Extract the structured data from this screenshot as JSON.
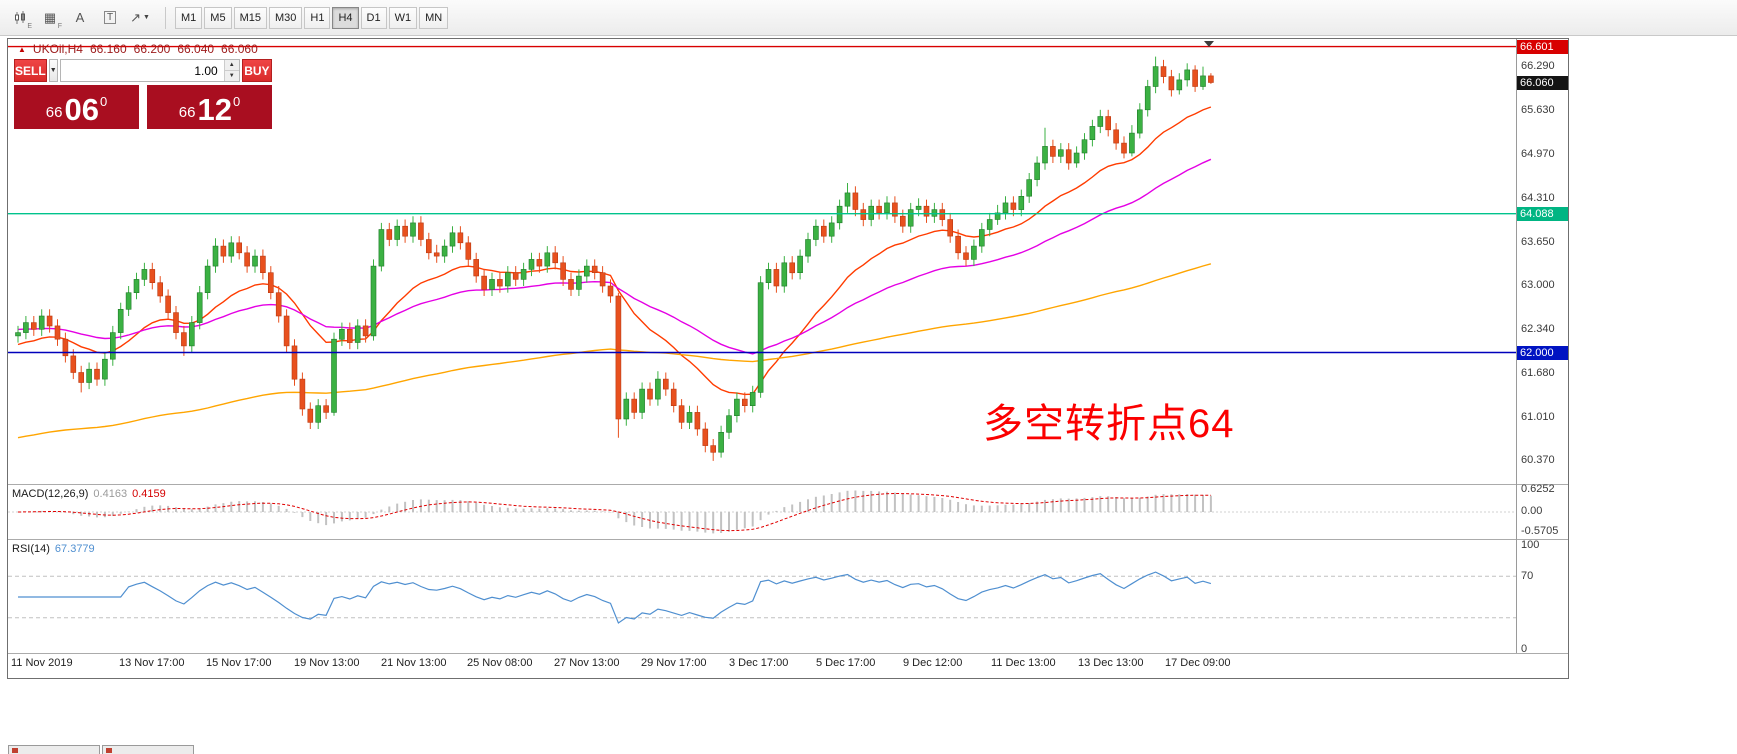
{
  "toolbar": {
    "icons": [
      {
        "name": "chart-candles-icon",
        "sub": "E"
      },
      {
        "name": "grid-icon",
        "glyph": "▦",
        "sub": "F"
      },
      {
        "name": "text-label-icon",
        "glyph": "A"
      },
      {
        "name": "text-box-icon",
        "glyph": "T"
      },
      {
        "name": "draw-tools-icon",
        "glyph": "↗",
        "dropdown": "▼"
      }
    ],
    "timeframes": [
      {
        "label": "M1"
      },
      {
        "label": "M5"
      },
      {
        "label": "M15"
      },
      {
        "label": "M30"
      },
      {
        "label": "H1"
      },
      {
        "label": "H4",
        "active": true
      },
      {
        "label": "D1"
      },
      {
        "label": "W1"
      },
      {
        "label": "MN"
      }
    ]
  },
  "quote_header": {
    "arrow": "▲",
    "symbol": "UKOil,H4",
    "open": "66.160",
    "high": "66.200",
    "low": "66.040",
    "close": "66.060"
  },
  "trade_panel": {
    "sell_label": "SELL",
    "buy_label": "BUY",
    "volume": "1.00",
    "dropdown_glyph": "▼",
    "spin_up": "▲",
    "spin_down": "▼",
    "bid": {
      "prefix": "66",
      "big": "06",
      "sup": "0"
    },
    "ask": {
      "prefix": "66",
      "big": "12",
      "sup": "0"
    }
  },
  "annotation": {
    "text": "多空转折点64",
    "color": "#fb0000"
  },
  "price_scale": {
    "gridlines": [
      "66.290",
      "65.630",
      "64.970",
      "64.310",
      "63.650",
      "63.000",
      "62.340",
      "61.680",
      "61.010",
      "60.370"
    ],
    "badges": [
      {
        "label": "66.601",
        "color": "#d80000"
      },
      {
        "label": "66.060",
        "color": "#141414"
      },
      {
        "label": "64.088",
        "color": "#00b583"
      },
      {
        "label": "62.000",
        "color": "#0013c2"
      }
    ]
  },
  "macd_panel": {
    "name": "MACD(12,26,9)",
    "value_main": "0.4163",
    "value_signal": "0.4159",
    "scale_labels": [
      "0.6252",
      "0.00",
      "-0.5705"
    ],
    "params": [
      12,
      26,
      9
    ]
  },
  "rsi_panel": {
    "name": "RSI(14)",
    "value": "67.3779",
    "scale_labels": [
      "100",
      "70",
      "0"
    ],
    "levels": [
      70,
      30
    ],
    "period": 14
  },
  "chart_data": {
    "type": "candlestick",
    "symbol": "UKOil",
    "timeframe": "H4",
    "price_range": [
      59.94,
      66.72
    ],
    "up_color": "#3bb143",
    "down_color": "#e8501e",
    "hlines": [
      {
        "price": 66.601,
        "color": "#d80000"
      },
      {
        "price": 64.088,
        "color": "#00c38c"
      },
      {
        "price": 62.0,
        "color": "#0000bb"
      }
    ],
    "ma": [
      {
        "name": "ma-fast",
        "color": "#ff3c00",
        "period": 18,
        "seed": 62.1
      },
      {
        "name": "ma-medium",
        "color": "#e400e4",
        "period": 45,
        "seed": 62.35
      },
      {
        "name": "ma-slow",
        "color": "#ffa500",
        "period": 160,
        "seed": 60.7
      }
    ],
    "time_labels": [
      "11 Nov 2019",
      "13 Nov 17:00",
      "15 Nov 17:00",
      "19 Nov 13:00",
      "21 Nov 13:00",
      "25 Nov 08:00",
      "27 Nov 13:00",
      "29 Nov 17:00",
      "3 Dec 17:00",
      "5 Dec 17:00",
      "9 Dec 12:00",
      "11 Dec 13:00",
      "13 Dec 13:00",
      "17 Dec 09:00"
    ],
    "candles": [
      [
        62.25,
        62.4,
        62.15,
        62.3
      ],
      [
        62.3,
        62.55,
        62.2,
        62.45
      ],
      [
        62.45,
        62.55,
        62.25,
        62.35
      ],
      [
        62.35,
        62.65,
        62.25,
        62.55
      ],
      [
        62.55,
        62.65,
        62.3,
        62.4
      ],
      [
        62.4,
        62.5,
        62.1,
        62.2
      ],
      [
        62.2,
        62.3,
        61.85,
        61.95
      ],
      [
        61.95,
        62.05,
        61.6,
        61.7
      ],
      [
        61.7,
        61.8,
        61.4,
        61.55
      ],
      [
        61.55,
        61.85,
        61.45,
        61.75
      ],
      [
        61.75,
        61.85,
        61.5,
        61.6
      ],
      [
        61.6,
        62.0,
        61.5,
        61.9
      ],
      [
        61.9,
        62.4,
        61.8,
        62.3
      ],
      [
        62.3,
        62.75,
        62.2,
        62.65
      ],
      [
        62.65,
        63.0,
        62.55,
        62.9
      ],
      [
        62.9,
        63.2,
        62.8,
        63.1
      ],
      [
        63.1,
        63.35,
        63.0,
        63.25
      ],
      [
        63.25,
        63.35,
        62.95,
        63.05
      ],
      [
        63.05,
        63.15,
        62.75,
        62.85
      ],
      [
        62.85,
        62.95,
        62.5,
        62.6
      ],
      [
        62.6,
        62.7,
        62.2,
        62.3
      ],
      [
        62.3,
        62.4,
        61.95,
        62.1
      ],
      [
        62.1,
        62.55,
        62.0,
        62.45
      ],
      [
        62.45,
        63.0,
        62.35,
        62.9
      ],
      [
        62.9,
        63.4,
        62.8,
        63.3
      ],
      [
        63.3,
        63.72,
        63.2,
        63.6
      ],
      [
        63.6,
        63.7,
        63.35,
        63.45
      ],
      [
        63.45,
        63.75,
        63.35,
        63.65
      ],
      [
        63.65,
        63.75,
        63.4,
        63.5
      ],
      [
        63.5,
        63.6,
        63.2,
        63.3
      ],
      [
        63.3,
        63.55,
        63.2,
        63.45
      ],
      [
        63.45,
        63.55,
        63.1,
        63.2
      ],
      [
        63.2,
        63.3,
        62.8,
        62.9
      ],
      [
        62.9,
        63.0,
        62.45,
        62.55
      ],
      [
        62.55,
        62.65,
        62.0,
        62.1
      ],
      [
        62.1,
        62.2,
        61.5,
        61.6
      ],
      [
        61.6,
        61.7,
        61.05,
        61.15
      ],
      [
        61.15,
        61.25,
        60.85,
        60.95
      ],
      [
        60.95,
        61.3,
        60.85,
        61.2
      ],
      [
        61.2,
        61.3,
        61.0,
        61.1
      ],
      [
        61.1,
        62.3,
        61.05,
        62.2
      ],
      [
        62.2,
        62.45,
        62.1,
        62.35
      ],
      [
        62.35,
        62.45,
        62.05,
        62.15
      ],
      [
        62.15,
        62.5,
        62.05,
        62.4
      ],
      [
        62.4,
        62.5,
        62.15,
        62.25
      ],
      [
        62.25,
        63.4,
        62.18,
        63.3
      ],
      [
        63.3,
        63.95,
        63.22,
        63.85
      ],
      [
        63.85,
        63.95,
        63.6,
        63.7
      ],
      [
        63.7,
        64.0,
        63.6,
        63.9
      ],
      [
        63.9,
        64.0,
        63.65,
        63.75
      ],
      [
        63.75,
        64.05,
        63.65,
        63.95
      ],
      [
        63.95,
        64.05,
        63.6,
        63.7
      ],
      [
        63.7,
        63.8,
        63.4,
        63.5
      ],
      [
        63.5,
        63.62,
        63.35,
        63.45
      ],
      [
        63.45,
        63.7,
        63.35,
        63.6
      ],
      [
        63.6,
        63.9,
        63.5,
        63.8
      ],
      [
        63.8,
        63.9,
        63.55,
        63.65
      ],
      [
        63.65,
        63.75,
        63.3,
        63.4
      ],
      [
        63.4,
        63.5,
        63.05,
        63.15
      ],
      [
        63.15,
        63.25,
        62.85,
        62.95
      ],
      [
        62.95,
        63.2,
        62.85,
        63.1
      ],
      [
        63.1,
        63.2,
        62.9,
        63.0
      ],
      [
        63.0,
        63.3,
        62.9,
        63.2
      ],
      [
        63.2,
        63.3,
        63.0,
        63.1
      ],
      [
        63.1,
        63.35,
        63.0,
        63.25
      ],
      [
        63.25,
        63.5,
        63.15,
        63.4
      ],
      [
        63.4,
        63.5,
        63.2,
        63.3
      ],
      [
        63.3,
        63.6,
        63.2,
        63.5
      ],
      [
        63.5,
        63.6,
        63.25,
        63.35
      ],
      [
        63.35,
        63.45,
        63.0,
        63.1
      ],
      [
        63.1,
        63.2,
        62.85,
        62.95
      ],
      [
        62.95,
        63.25,
        62.85,
        63.15
      ],
      [
        63.15,
        63.4,
        63.05,
        63.3
      ],
      [
        63.3,
        63.4,
        63.1,
        63.2
      ],
      [
        63.2,
        63.3,
        62.9,
        63.0
      ],
      [
        63.0,
        63.1,
        62.75,
        62.85
      ],
      [
        62.85,
        62.9,
        60.72,
        61.0
      ],
      [
        61.0,
        61.4,
        60.9,
        61.3
      ],
      [
        61.3,
        61.4,
        61.0,
        61.1
      ],
      [
        61.1,
        61.55,
        61.0,
        61.45
      ],
      [
        61.45,
        61.55,
        61.2,
        61.3
      ],
      [
        61.3,
        61.72,
        61.2,
        61.6
      ],
      [
        61.6,
        61.7,
        61.35,
        61.45
      ],
      [
        61.45,
        61.55,
        61.1,
        61.2
      ],
      [
        61.2,
        61.3,
        60.85,
        60.95
      ],
      [
        60.95,
        61.2,
        60.85,
        61.1
      ],
      [
        61.1,
        61.2,
        60.75,
        60.85
      ],
      [
        60.85,
        60.95,
        60.5,
        60.6
      ],
      [
        60.6,
        60.7,
        60.37,
        60.5
      ],
      [
        60.5,
        60.9,
        60.42,
        60.8
      ],
      [
        60.8,
        61.15,
        60.7,
        61.05
      ],
      [
        61.05,
        61.4,
        60.95,
        61.3
      ],
      [
        61.3,
        61.4,
        61.1,
        61.2
      ],
      [
        61.2,
        61.5,
        61.1,
        61.4
      ],
      [
        61.4,
        63.15,
        61.32,
        63.05
      ],
      [
        63.05,
        63.35,
        62.95,
        63.25
      ],
      [
        63.25,
        63.35,
        62.9,
        63.0
      ],
      [
        63.0,
        63.45,
        62.9,
        63.35
      ],
      [
        63.35,
        63.45,
        63.1,
        63.2
      ],
      [
        63.2,
        63.55,
        63.1,
        63.45
      ],
      [
        63.45,
        63.8,
        63.35,
        63.7
      ],
      [
        63.7,
        64.0,
        63.6,
        63.9
      ],
      [
        63.9,
        64.0,
        63.65,
        63.75
      ],
      [
        63.75,
        64.05,
        63.65,
        63.95
      ],
      [
        63.95,
        64.3,
        63.85,
        64.2
      ],
      [
        64.2,
        64.55,
        64.1,
        64.4
      ],
      [
        64.4,
        64.5,
        64.05,
        64.15
      ],
      [
        64.15,
        64.25,
        63.9,
        64.0
      ],
      [
        64.0,
        64.3,
        63.9,
        64.2
      ],
      [
        64.2,
        64.3,
        64.0,
        64.1
      ],
      [
        64.1,
        64.35,
        64.0,
        64.25
      ],
      [
        64.25,
        64.35,
        63.95,
        64.05
      ],
      [
        64.05,
        64.15,
        63.8,
        63.9
      ],
      [
        63.9,
        64.25,
        63.8,
        64.15
      ],
      [
        64.15,
        64.32,
        64.05,
        64.2
      ],
      [
        64.2,
        64.3,
        63.95,
        64.05
      ],
      [
        64.05,
        64.25,
        63.95,
        64.15
      ],
      [
        64.15,
        64.25,
        63.9,
        64.0
      ],
      [
        64.0,
        64.1,
        63.65,
        63.75
      ],
      [
        63.75,
        63.85,
        63.4,
        63.5
      ],
      [
        63.5,
        63.6,
        63.3,
        63.4
      ],
      [
        63.4,
        63.7,
        63.3,
        63.6
      ],
      [
        63.6,
        63.95,
        63.5,
        63.85
      ],
      [
        63.85,
        64.1,
        63.75,
        64.0
      ],
      [
        64.0,
        64.22,
        63.92,
        64.1
      ],
      [
        64.1,
        64.35,
        64.0,
        64.25
      ],
      [
        64.25,
        64.35,
        64.05,
        64.15
      ],
      [
        64.15,
        64.45,
        64.05,
        64.35
      ],
      [
        64.35,
        64.7,
        64.25,
        64.6
      ],
      [
        64.6,
        64.95,
        64.5,
        64.85
      ],
      [
        64.85,
        65.38,
        64.75,
        65.1
      ],
      [
        65.1,
        65.2,
        64.85,
        64.95
      ],
      [
        64.95,
        65.15,
        64.85,
        65.05
      ],
      [
        65.05,
        65.15,
        64.75,
        64.85
      ],
      [
        64.85,
        65.1,
        64.78,
        65.0
      ],
      [
        65.0,
        65.3,
        64.9,
        65.2
      ],
      [
        65.2,
        65.5,
        65.1,
        65.4
      ],
      [
        65.4,
        65.65,
        65.3,
        65.55
      ],
      [
        65.55,
        65.65,
        65.25,
        65.35
      ],
      [
        65.35,
        65.45,
        65.05,
        65.15
      ],
      [
        65.15,
        65.25,
        64.92,
        65.0
      ],
      [
        65.0,
        65.42,
        64.95,
        65.3
      ],
      [
        65.3,
        65.75,
        65.22,
        65.65
      ],
      [
        65.65,
        66.1,
        65.55,
        66.0
      ],
      [
        66.0,
        66.45,
        65.9,
        66.3
      ],
      [
        66.3,
        66.4,
        66.05,
        66.15
      ],
      [
        66.15,
        66.25,
        65.85,
        65.95
      ],
      [
        65.95,
        66.2,
        65.88,
        66.1
      ],
      [
        66.1,
        66.35,
        66.0,
        66.25
      ],
      [
        66.25,
        66.32,
        65.92,
        66.0
      ],
      [
        66.0,
        66.3,
        65.95,
        66.16
      ],
      [
        66.16,
        66.2,
        66.04,
        66.06
      ]
    ]
  }
}
